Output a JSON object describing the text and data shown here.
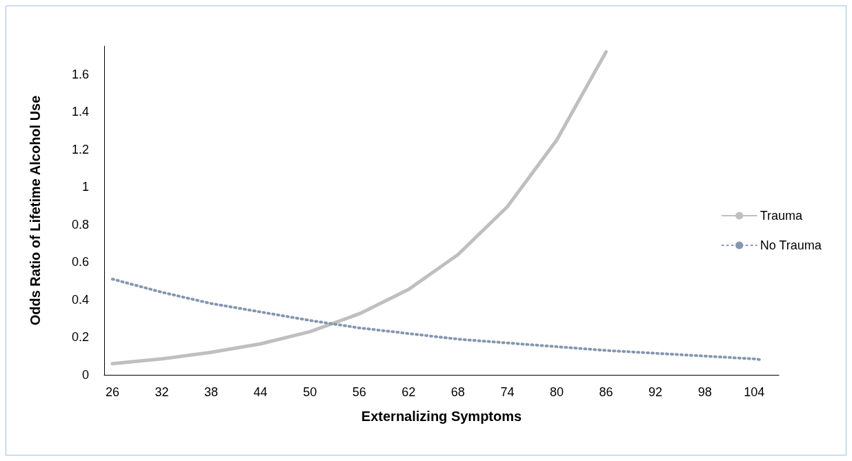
{
  "chart_data": {
    "type": "line",
    "xlabel": "Externalizing Symptoms",
    "ylabel": "Odds Ratio of Lifetime Alcohol Use",
    "xlim": [
      25,
      107
    ],
    "xticks": [
      26,
      32,
      38,
      44,
      50,
      56,
      62,
      68,
      74,
      80,
      86,
      92,
      98,
      104
    ],
    "ylim": [
      0,
      1.75
    ],
    "yticks": [
      0,
      0.2,
      0.4,
      0.6,
      0.8,
      1,
      1.2,
      1.4,
      1.6
    ],
    "grid": false,
    "legend": "right",
    "marker": "none",
    "series": [
      {
        "name": "Trauma",
        "color": "#bfbfbf",
        "line_style": "solid",
        "x": [
          26,
          32,
          38,
          44,
          50,
          56,
          62,
          68,
          74,
          80,
          86
        ],
        "values": [
          0.06,
          0.085,
          0.12,
          0.165,
          0.23,
          0.325,
          0.455,
          0.64,
          0.895,
          1.25,
          1.72
        ]
      },
      {
        "name": "No Trauma",
        "color": "#8497b0",
        "line_style": "dotted",
        "x": [
          26,
          32,
          38,
          44,
          50,
          56,
          62,
          68,
          74,
          80,
          86,
          92,
          98,
          104,
          105
        ],
        "values": [
          0.51,
          0.44,
          0.38,
          0.335,
          0.29,
          0.25,
          0.22,
          0.19,
          0.17,
          0.15,
          0.13,
          0.115,
          0.1,
          0.085,
          0.08
        ]
      }
    ]
  }
}
